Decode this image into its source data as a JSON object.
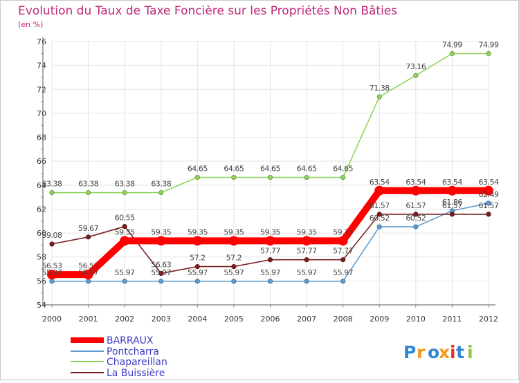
{
  "chart_data": {
    "type": "line",
    "title": "Evolution du Taux de Taxe Foncière sur les Propriétés Non Bâties",
    "subtitle": "(en %)",
    "xlabel": "",
    "ylabel": "",
    "categories": [
      "2000",
      "2001",
      "2002",
      "2003",
      "2004",
      "2005",
      "2006",
      "2007",
      "2008",
      "2009",
      "2010",
      "2011",
      "2012"
    ],
    "ylim": [
      54,
      76
    ],
    "yticks": [
      54,
      56,
      58,
      60,
      62,
      64,
      66,
      68,
      70,
      72,
      74,
      76
    ],
    "grid": true,
    "legend": "bottom-left",
    "series": [
      {
        "name": "BARRAUX",
        "color": "#ff0000",
        "values": [
          56.53,
          56.53,
          59.35,
          59.35,
          59.35,
          59.35,
          59.35,
          59.35,
          59.35,
          63.54,
          63.54,
          63.54,
          63.54
        ],
        "labels": [
          "56.53",
          "56.53",
          "59.35",
          "59.35",
          "59.35",
          "59.35",
          "59.35",
          "59.35",
          "59.35",
          "63.54",
          "63.54",
          "63.54",
          "63.54"
        ]
      },
      {
        "name": "Pontcharra",
        "color": "#5e9bd1",
        "values": [
          55.97,
          55.97,
          55.97,
          55.97,
          55.97,
          55.97,
          55.97,
          55.97,
          55.97,
          60.52,
          60.52,
          61.86,
          62.49
        ],
        "labels": [
          "55.97",
          "55.97",
          "55.97",
          "55.97",
          "55.97",
          "55.97",
          "55.97",
          "55.97",
          "55.97",
          "60.52",
          "60.52",
          "61.86",
          "62.49"
        ]
      },
      {
        "name": "Chapareillan",
        "color": "#8fd45a",
        "values": [
          63.38,
          63.38,
          63.38,
          63.38,
          64.65,
          64.65,
          64.65,
          64.65,
          64.65,
          71.38,
          73.16,
          74.99,
          74.99
        ],
        "labels": [
          "63.38",
          "63.38",
          "63.38",
          "63.38",
          "64.65",
          "64.65",
          "64.65",
          "64.65",
          "64.65",
          "71.38",
          "73.16",
          "74.99",
          "74.99"
        ]
      },
      {
        "name": "La Buissière",
        "color": "#7a1f1f",
        "values": [
          59.08,
          59.67,
          60.55,
          56.63,
          57.2,
          57.2,
          57.77,
          57.77,
          57.77,
          61.57,
          61.57,
          61.57,
          61.57
        ],
        "labels": [
          "59.08",
          "59.67",
          "60.55",
          "56.63",
          "57.2",
          "57.2",
          "57.77",
          "57.77",
          "57.77",
          "61.57",
          "61.57",
          "61.57",
          "61.57"
        ]
      }
    ]
  },
  "logo": {
    "text": "Proxiti"
  }
}
